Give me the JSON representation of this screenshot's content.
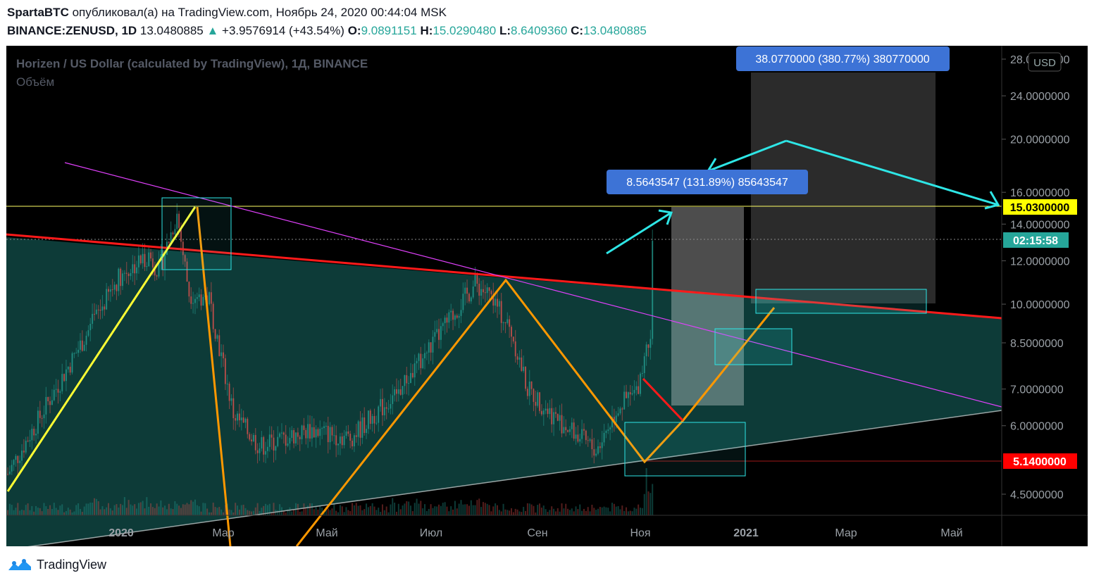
{
  "header": {
    "author": "SpartaBTC",
    "published_text": " опубликовал(а) на TradingView.com, Ноябрь 24, 2020 00:44:04 MSK",
    "symbol": "BINANCE:ZENUSD, 1D",
    "last": "13.0480885",
    "change": "+3.9576914 (+43.54%)",
    "o_label": "O:",
    "o": "9.0891151",
    "h_label": "H:",
    "h": "15.0290480",
    "l_label": "L:",
    "l": "8.6409360",
    "c_label": "C:",
    "c": "13.0480885"
  },
  "chart": {
    "title": "Horizen / US Dollar (calculated by TradingView), 1Д, BINANCE",
    "volume_label": "Объём",
    "currency_button": "USD",
    "countdown": "02:15:58",
    "price_tag_high": "15.0300000",
    "price_tag_low": "5.1400000",
    "measure_box_large": "38.0770000 (380.77%) 380770000",
    "measure_box_small": "8.5643547 (131.89%) 85643547",
    "colors": {
      "up": "#26a69a",
      "down": "#ef5350",
      "background": "#000000",
      "triangle_fill": "#0d3b38",
      "resistance": "#ff1a1a",
      "yellow": "#ffff33",
      "orange": "#ff9800",
      "cyan": "#2ee6e6",
      "magenta": "#e040fb",
      "tag_high": "#ffff00",
      "tag_low": "#ff0000",
      "label_blue": "#3d73d6"
    }
  },
  "chart_data": {
    "type": "candlestick",
    "y_ticks": [
      "28.0000000",
      "24.0000000",
      "20.0000000",
      "16.0000000",
      "14.0000000",
      "12.0000000",
      "10.0000000",
      "8.5000000",
      "7.0000000",
      "6.0000000",
      "4.5000000"
    ],
    "x_ticks": [
      "2020",
      "Мар",
      "Май",
      "Июл",
      "Сен",
      "Ноя",
      "2021",
      "Мар",
      "Май"
    ],
    "ylim": [
      4.2,
      28.5
    ],
    "scale": "log",
    "anchors": [
      {
        "d": 0,
        "p": 4.9
      },
      {
        "d": 55,
        "p": 11.2
      },
      {
        "d": 70,
        "p": 12.3
      },
      {
        "d": 75,
        "p": 11.5
      },
      {
        "d": 84,
        "p": 14.6
      },
      {
        "d": 90,
        "p": 10.5
      },
      {
        "d": 100,
        "p": 10.2
      },
      {
        "d": 112,
        "p": 6.3
      },
      {
        "d": 125,
        "p": 5.5
      },
      {
        "d": 150,
        "p": 5.9
      },
      {
        "d": 170,
        "p": 5.7
      },
      {
        "d": 195,
        "p": 7.0
      },
      {
        "d": 215,
        "p": 8.9
      },
      {
        "d": 232,
        "p": 10.9
      },
      {
        "d": 240,
        "p": 10.3
      },
      {
        "d": 250,
        "p": 8.9
      },
      {
        "d": 258,
        "p": 7.0
      },
      {
        "d": 272,
        "p": 6.2
      },
      {
        "d": 292,
        "p": 5.4
      },
      {
        "d": 303,
        "p": 6.5
      },
      {
        "d": 312,
        "p": 6.9
      },
      {
        "d": 319,
        "p": 9.0
      },
      {
        "d": 320,
        "p": 13.05
      }
    ]
  }
}
